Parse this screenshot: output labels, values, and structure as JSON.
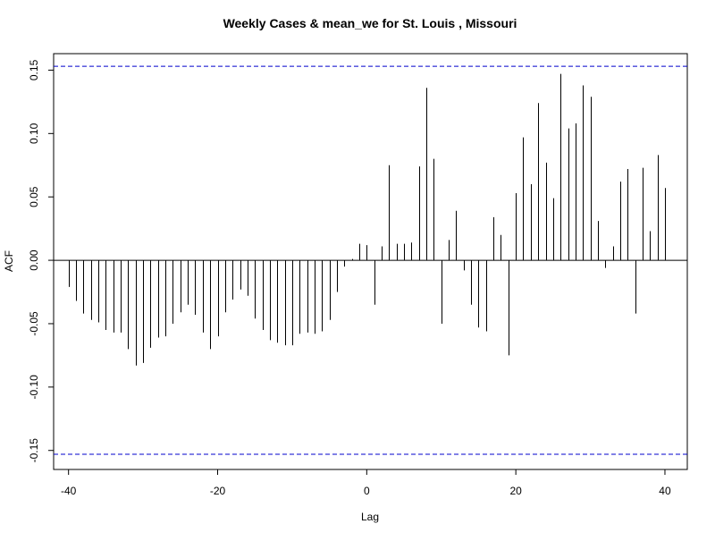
{
  "chart_data": {
    "type": "bar",
    "title": "Weekly Cases & mean_we for St. Louis , Missouri",
    "xlabel": "Lag",
    "ylabel": "ACF",
    "xlim": [
      -42,
      43
    ],
    "ylim": [
      -0.165,
      0.163
    ],
    "x_ticks": [
      -40,
      -20,
      0,
      20,
      40
    ],
    "y_ticks": [
      -0.15,
      -0.1,
      -0.05,
      0.0,
      0.05,
      0.1,
      0.15
    ],
    "y_tick_labels": [
      "-0.15",
      "-0.10",
      "-0.05",
      "0.00",
      "0.05",
      "0.10",
      "0.15"
    ],
    "confidence_bounds": [
      0.153,
      -0.153
    ],
    "colors": {
      "bars": "#000000",
      "bounds": "#0000cc",
      "zero_line": "#000000"
    },
    "series": [
      {
        "lags": [
          -40,
          -39,
          -38,
          -37,
          -36,
          -35,
          -34,
          -33,
          -32,
          -31,
          -30,
          -29,
          -28,
          -27,
          -26,
          -25,
          -24,
          -23,
          -22,
          -21,
          -20,
          -19,
          -18,
          -17,
          -16,
          -15,
          -14,
          -13,
          -12,
          -11,
          -10,
          -9,
          -8,
          -7,
          -6,
          -5,
          -4,
          -3,
          -2,
          -1,
          0,
          1,
          2,
          3,
          4,
          5,
          6,
          7,
          8,
          9,
          10,
          11,
          12,
          13,
          14,
          15,
          16,
          17,
          18,
          19,
          20,
          21,
          22,
          23,
          24,
          25,
          26,
          27,
          28,
          29,
          30,
          31,
          32,
          33,
          34,
          35,
          36,
          37,
          38,
          39,
          40
        ],
        "values": [
          -0.021,
          -0.032,
          -0.042,
          -0.047,
          -0.049,
          -0.055,
          -0.057,
          -0.057,
          -0.07,
          -0.083,
          -0.081,
          -0.069,
          -0.061,
          -0.06,
          -0.05,
          -0.041,
          -0.035,
          -0.043,
          -0.057,
          -0.07,
          -0.06,
          -0.041,
          -0.031,
          -0.023,
          -0.028,
          -0.046,
          -0.055,
          -0.063,
          -0.065,
          -0.067,
          -0.067,
          -0.058,
          -0.057,
          -0.058,
          -0.056,
          -0.047,
          -0.025,
          -0.005,
          0.001,
          0.013,
          0.012,
          -0.035,
          0.011,
          0.075,
          0.013,
          0.013,
          0.014,
          0.074,
          0.136,
          0.08,
          -0.05,
          0.016,
          0.039,
          -0.008,
          -0.035,
          -0.053,
          -0.056,
          0.034,
          0.02,
          -0.075,
          0.053,
          0.097,
          0.06,
          0.124,
          0.077,
          0.049,
          0.147,
          0.104,
          0.108,
          0.138,
          0.129,
          0.031,
          -0.006,
          0.011,
          0.062,
          0.072,
          -0.042,
          0.073,
          0.023,
          0.083,
          0.057
        ]
      }
    ]
  }
}
